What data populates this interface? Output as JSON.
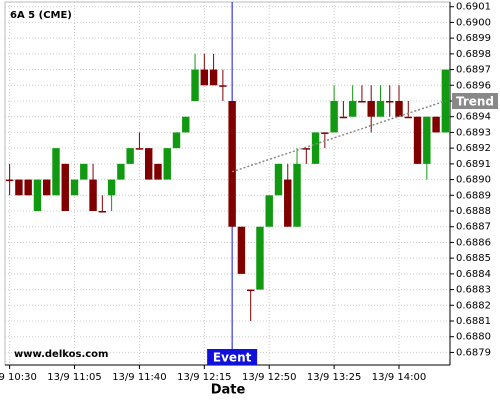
{
  "chart_data": {
    "type": "candlestick",
    "title": "6A 5 (CME)",
    "xlabel": "Date",
    "watermark": "www.delkos.com",
    "categories": [
      "13/9 10:30",
      null,
      null,
      null,
      null,
      null,
      null,
      "13/9 11:05",
      null,
      null,
      null,
      null,
      null,
      null,
      "13/9 11:40",
      null,
      null,
      null,
      null,
      null,
      null,
      "13/9 12:15",
      null,
      null,
      null,
      null,
      null,
      null,
      "13/9 12:50",
      null,
      null,
      null,
      null,
      null,
      null,
      "13/9 13:25",
      null,
      null,
      null,
      null,
      null,
      null,
      "13/9 14:00",
      null,
      null,
      null,
      null,
      null
    ],
    "open": [
      0.689,
      0.689,
      0.689,
      0.6888,
      0.689,
      0.6889,
      0.6891,
      0.6889,
      0.689,
      0.689,
      0.6888,
      0.6889,
      0.689,
      0.6891,
      0.6892,
      0.6892,
      0.6891,
      0.689,
      0.6892,
      0.6893,
      0.6895,
      0.6897,
      0.6897,
      0.6896,
      0.6895,
      0.6887,
      0.6883,
      0.6883,
      0.6887,
      0.6889,
      0.689,
      0.6887,
      0.6892,
      0.6891,
      0.6893,
      0.6893,
      0.6894,
      0.6894,
      0.6895,
      0.6895,
      0.6894,
      0.6895,
      0.6895,
      0.6894,
      0.6894,
      0.6891,
      0.6894,
      0.6893
    ],
    "high": [
      0.6891,
      0.689,
      0.689,
      0.689,
      0.689,
      0.6892,
      0.6891,
      0.689,
      0.6891,
      0.6891,
      0.6889,
      0.689,
      0.6891,
      0.6892,
      0.6893,
      0.6892,
      0.6891,
      0.6892,
      0.6893,
      0.6894,
      0.6898,
      0.6898,
      0.6898,
      0.6897,
      0.6895,
      0.6887,
      0.6883,
      0.6887,
      0.6889,
      0.6891,
      0.6891,
      0.6892,
      0.6892,
      0.6893,
      0.6893,
      0.6896,
      0.6895,
      0.6896,
      0.6896,
      0.6896,
      0.6896,
      0.6896,
      0.6896,
      0.6895,
      0.6894,
      0.6894,
      0.6894,
      0.6897
    ],
    "low": [
      0.6889,
      0.6889,
      0.6889,
      0.6888,
      0.6889,
      0.6889,
      0.6888,
      0.6889,
      0.689,
      0.6888,
      0.6888,
      0.6888,
      0.689,
      0.6891,
      0.6892,
      0.689,
      0.689,
      0.689,
      0.6892,
      0.6893,
      0.6895,
      0.6896,
      0.6896,
      0.6895,
      0.6887,
      0.6884,
      0.6881,
      0.6883,
      0.6887,
      0.6889,
      0.6887,
      0.6887,
      0.6891,
      0.6891,
      0.6892,
      0.6893,
      0.6894,
      0.6894,
      0.6895,
      0.6893,
      0.6894,
      0.6894,
      0.6894,
      0.6894,
      0.6891,
      0.689,
      0.6893,
      0.6893
    ],
    "close": [
      0.689,
      0.6889,
      0.6889,
      0.689,
      0.6889,
      0.6892,
      0.6888,
      0.689,
      0.6891,
      0.6888,
      0.6888,
      0.689,
      0.6891,
      0.6892,
      0.6892,
      0.689,
      0.689,
      0.6892,
      0.6893,
      0.6894,
      0.6897,
      0.6896,
      0.6896,
      0.6896,
      0.6887,
      0.6884,
      0.6883,
      0.6887,
      0.6889,
      0.6891,
      0.6887,
      0.6891,
      0.6892,
      0.6893,
      0.6893,
      0.6895,
      0.6894,
      0.6895,
      0.6895,
      0.6894,
      0.6895,
      0.6895,
      0.6894,
      0.6894,
      0.6891,
      0.6894,
      0.6893,
      0.6897
    ],
    "up_color": "#119911",
    "down_color": "#800000",
    "ylim": [
      0.68782,
      0.69013
    ],
    "yticks": [
      0.6879,
      {
        "value": 0.688,
        "label": "0.6880"
      },
      0.6881,
      0.6882,
      0.6883,
      0.6884,
      0.6885,
      0.6886,
      0.6887,
      0.6888,
      0.6889,
      {
        "value": 0.689,
        "label": "0.6890"
      },
      0.6891,
      0.6892,
      0.6893,
      0.6894,
      0.6895,
      0.6896,
      0.6897,
      0.6898,
      0.6899,
      {
        "value": 0.69,
        "label": "0.6900"
      },
      0.6901
    ],
    "grid": true,
    "event": {
      "label": "Event",
      "at": 24,
      "color": "#1010dd"
    },
    "trend": {
      "label": "Trend",
      "from": [
        24,
        0.68905
      ],
      "to": [
        47,
        0.6895
      ],
      "color": "#888888"
    }
  }
}
